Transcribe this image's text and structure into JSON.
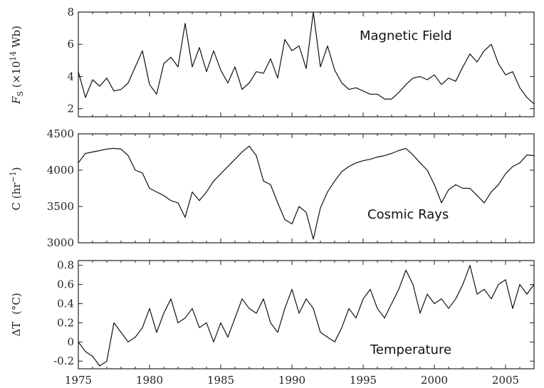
{
  "chart_data": [
    {
      "type": "line",
      "id": "magnetic",
      "annotation": "Magnetic Field",
      "ylabel": "F_S (×10^14 Wb)",
      "ylabel_parts": {
        "f": "F",
        "sub": "S",
        "pre": " (×10",
        "sup": "14",
        "post": " Wb)"
      },
      "xlim": [
        1975,
        2007
      ],
      "ylim": [
        1.5,
        8
      ],
      "yticks": [
        2,
        4,
        6,
        8
      ],
      "ytick_labels": [
        "2",
        "4",
        "6",
        "8"
      ],
      "series": [
        {
          "name": "Magnetic Field",
          "x": [
            1975,
            1975.5,
            1976,
            1976.5,
            1977,
            1977.5,
            1978,
            1978.5,
            1979,
            1979.5,
            1980,
            1980.5,
            1981,
            1981.5,
            1982,
            1982.5,
            1983,
            1983.5,
            1984,
            1984.5,
            1985,
            1985.5,
            1986,
            1986.5,
            1987,
            1987.5,
            1988,
            1988.5,
            1989,
            1989.5,
            1990,
            1990.5,
            1991,
            1991.5,
            1992,
            1992.5,
            1993,
            1993.5,
            1994,
            1994.5,
            1995,
            1995.5,
            1996,
            1996.5,
            1997,
            1997.5,
            1998,
            1998.5,
            1999,
            1999.5,
            2000,
            2000.5,
            2001,
            2001.5,
            2002,
            2002.5,
            2003,
            2003.5,
            2004,
            2004.5,
            2005,
            2005.5,
            2006,
            2006.5,
            2007
          ],
          "y": [
            4.3,
            2.7,
            3.8,
            3.4,
            3.9,
            3.1,
            3.2,
            3.6,
            4.6,
            5.6,
            3.5,
            2.9,
            4.8,
            5.2,
            4.6,
            7.3,
            4.6,
            5.8,
            4.3,
            5.6,
            4.4,
            3.6,
            4.6,
            3.2,
            3.6,
            4.3,
            4.2,
            5.1,
            3.9,
            6.3,
            5.6,
            5.9,
            4.5,
            8.0,
            4.6,
            5.9,
            4.4,
            3.6,
            3.2,
            3.3,
            3.1,
            2.9,
            2.9,
            2.6,
            2.6,
            3.0,
            3.5,
            3.9,
            4.0,
            3.8,
            4.1,
            3.5,
            3.9,
            3.7,
            4.6,
            5.4,
            4.9,
            5.6,
            6.0,
            4.8,
            4.1,
            4.3,
            3.3,
            2.7,
            2.3
          ]
        }
      ]
    },
    {
      "type": "line",
      "id": "cosmic",
      "annotation": "Cosmic Rays",
      "ylabel": "C (hr⁻¹)",
      "ylabel_parts": {
        "pre": "C (hr",
        "sup": "−1",
        "post": ")"
      },
      "xlim": [
        1975,
        2007
      ],
      "ylim": [
        3000,
        4500
      ],
      "yticks": [
        3000,
        3500,
        4000,
        4500
      ],
      "ytick_labels": [
        "3000",
        "3500",
        "4000",
        "4500"
      ],
      "series": [
        {
          "name": "Cosmic Rays",
          "x": [
            1975,
            1975.5,
            1976,
            1976.5,
            1977,
            1977.5,
            1978,
            1978.5,
            1979,
            1979.5,
            1980,
            1980.5,
            1981,
            1981.5,
            1982,
            1982.5,
            1983,
            1983.5,
            1984,
            1984.5,
            1985,
            1985.5,
            1986,
            1986.5,
            1987,
            1987.5,
            1988,
            1988.5,
            1989,
            1989.5,
            1990,
            1990.5,
            1991,
            1991.5,
            1992,
            1992.5,
            1993,
            1993.5,
            1994,
            1994.5,
            1995,
            1995.5,
            1996,
            1996.5,
            1997,
            1997.5,
            1998,
            1998.5,
            1999,
            1999.5,
            2000,
            2000.5,
            2001,
            2001.5,
            2002,
            2002.5,
            2003,
            2003.5,
            2004,
            2004.5,
            2005,
            2005.5,
            2006,
            2006.5,
            2007
          ],
          "y": [
            4100,
            4230,
            4250,
            4270,
            4290,
            4300,
            4290,
            4200,
            4000,
            3960,
            3750,
            3700,
            3650,
            3580,
            3550,
            3350,
            3700,
            3580,
            3700,
            3850,
            3950,
            4050,
            4150,
            4250,
            4330,
            4200,
            3850,
            3800,
            3550,
            3320,
            3260,
            3500,
            3420,
            3050,
            3480,
            3700,
            3850,
            3980,
            4050,
            4100,
            4130,
            4150,
            4180,
            4200,
            4230,
            4270,
            4300,
            4210,
            4100,
            4000,
            3800,
            3550,
            3730,
            3800,
            3750,
            3750,
            3650,
            3550,
            3700,
            3800,
            3950,
            4050,
            4100,
            4210,
            4200
          ]
        }
      ]
    },
    {
      "type": "line",
      "id": "temperature",
      "annotation": "Temperature",
      "ylabel": "ΔT (°C)",
      "ylabel_parts": {
        "pre": "ΔT",
        "post": "(°C)"
      },
      "xlim": [
        1975,
        2007
      ],
      "ylim": [
        -0.28,
        0.85
      ],
      "yticks": [
        -0.2,
        0,
        0.2,
        0.4,
        0.6,
        0.8
      ],
      "ytick_labels": [
        "-0.2",
        "0",
        "0.2",
        "0.4",
        "0.6",
        "0.8"
      ],
      "xticks": [
        1975,
        1980,
        1985,
        1990,
        1995,
        2000,
        2005
      ],
      "xtick_labels": [
        "1975",
        "1980",
        "1985",
        "1990",
        "1995",
        "2000",
        "2005"
      ],
      "series": [
        {
          "name": "Temperature",
          "x": [
            1975,
            1975.5,
            1976,
            1976.5,
            1977,
            1977.5,
            1978,
            1978.5,
            1979,
            1979.5,
            1980,
            1980.5,
            1981,
            1981.5,
            1982,
            1982.5,
            1983,
            1983.5,
            1984,
            1984.5,
            1985,
            1985.5,
            1986,
            1986.5,
            1987,
            1987.5,
            1988,
            1988.5,
            1989,
            1989.5,
            1990,
            1990.5,
            1991,
            1991.5,
            1992,
            1992.5,
            1993,
            1993.5,
            1994,
            1994.5,
            1995,
            1995.5,
            1996,
            1996.5,
            1997,
            1997.5,
            1998,
            1998.5,
            1999,
            1999.5,
            2000,
            2000.5,
            2001,
            2001.5,
            2002,
            2002.5,
            2003,
            2003.5,
            2004,
            2004.5,
            2005,
            2005.5,
            2006,
            2006.5,
            2007
          ],
          "y": [
            0.0,
            -0.1,
            -0.15,
            -0.25,
            -0.2,
            0.2,
            0.1,
            0.0,
            0.05,
            0.15,
            0.35,
            0.1,
            0.3,
            0.45,
            0.2,
            0.25,
            0.35,
            0.15,
            0.2,
            0.0,
            0.2,
            0.05,
            0.25,
            0.45,
            0.35,
            0.3,
            0.45,
            0.2,
            0.1,
            0.35,
            0.55,
            0.3,
            0.45,
            0.35,
            0.1,
            0.05,
            0.0,
            0.15,
            0.35,
            0.25,
            0.45,
            0.55,
            0.35,
            0.25,
            0.4,
            0.55,
            0.75,
            0.6,
            0.3,
            0.5,
            0.4,
            0.45,
            0.35,
            0.45,
            0.6,
            0.8,
            0.5,
            0.55,
            0.45,
            0.6,
            0.65,
            0.35,
            0.6,
            0.5,
            0.6
          ]
        }
      ]
    }
  ]
}
